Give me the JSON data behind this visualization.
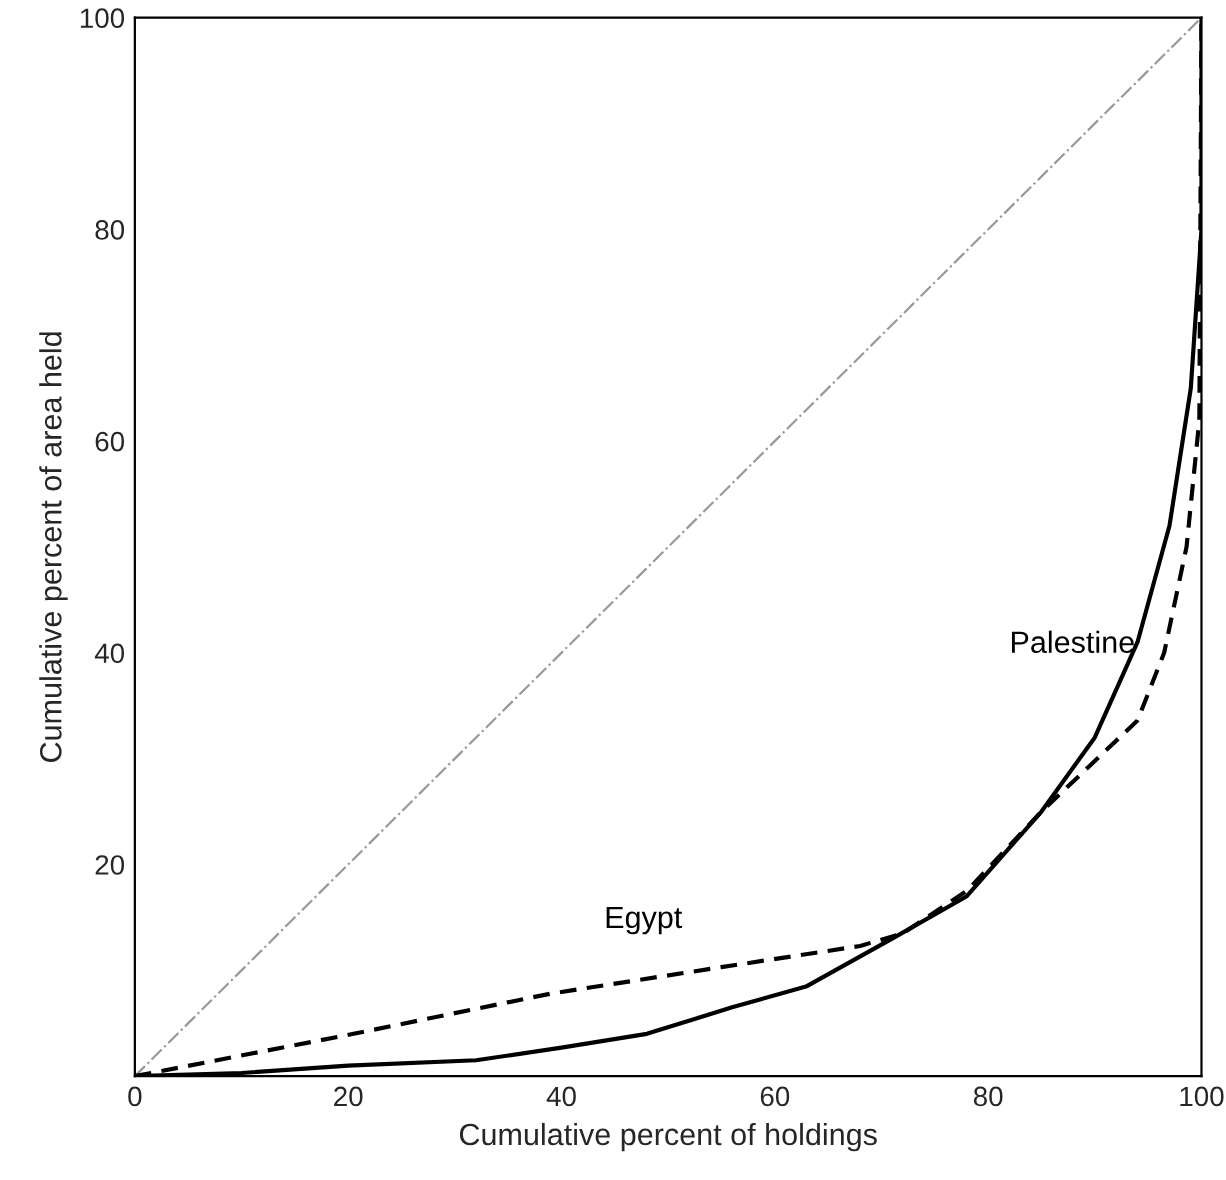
{
  "chart_data": {
    "type": "line",
    "xlabel": "Cumulative percent of holdings",
    "ylabel": "Cumulative percent of area held",
    "xlim": [
      0,
      100
    ],
    "ylim": [
      0,
      100
    ],
    "xticks": [
      0,
      20,
      40,
      60,
      80,
      100
    ],
    "yticks": [
      20,
      40,
      60,
      80,
      100
    ],
    "grid": false,
    "legend": false,
    "marker": "none",
    "series": [
      {
        "color": "#999999",
        "line_style": "dashdot",
        "x": [
          0,
          100
        ],
        "values": [
          0,
          100
        ]
      },
      {
        "name": "Palestine",
        "color": "#000000",
        "line_style": "solid",
        "x": [
          0,
          10,
          20,
          32,
          40,
          48,
          56,
          63,
          71,
          78,
          85,
          90,
          94,
          97,
          99,
          100,
          100
        ],
        "values": [
          0,
          0.3,
          1,
          1.5,
          2.7,
          4,
          6.5,
          8.5,
          13,
          17,
          25,
          32,
          41,
          52,
          65,
          80,
          100
        ]
      },
      {
        "name": "Egypt",
        "color": "#000000",
        "line_style": "dashed",
        "x": [
          0,
          20.5,
          39,
          55,
          68,
          72,
          78,
          85,
          94,
          96.5,
          98.6,
          99.8,
          100
        ],
        "values": [
          0,
          4,
          7.8,
          10.3,
          12.3,
          13.5,
          17.5,
          25,
          33.6,
          40,
          50,
          62,
          100
        ]
      }
    ]
  }
}
